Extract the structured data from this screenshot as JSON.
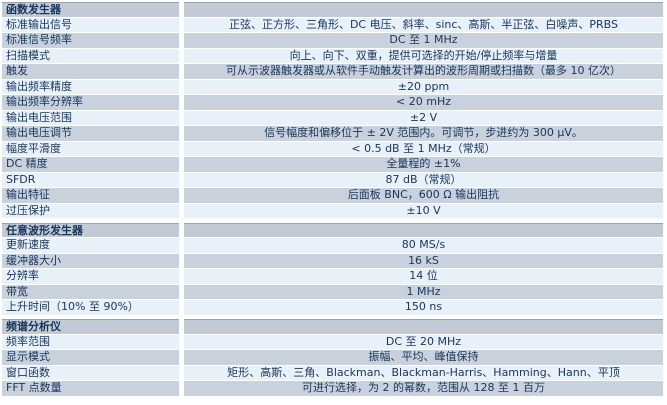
{
  "table": {
    "colors": {
      "row_light": "#e8f0f8",
      "row_dark": "#c8d1dc",
      "header_bg": "#c2cad4",
      "text": "#17365d"
    },
    "sections": [
      {
        "header": "函数发生器",
        "rows": [
          {
            "label": "标准输出信号",
            "value": "正弦、正方形、三角形、DC 电压、斜率、sinc、高斯、半正弦、白噪声、PRBS"
          },
          {
            "label": "标准信号频率",
            "value": "DC 至 1 MHz"
          },
          {
            "label": "扫描模式",
            "value": "向上、向下、双重，提供可选择的开始/停止频率与增量"
          },
          {
            "label": "触发",
            "value": "可从示波器触发器或从软件手动触发计算出的波形周期或扫描数（最多 10 亿次）"
          },
          {
            "label": "输出频率精度",
            "value": "±20 ppm"
          },
          {
            "label": "输出频率分辨率",
            "value": "< 20 mHz"
          },
          {
            "label": "输出电压范围",
            "value": "±2 V"
          },
          {
            "label": "输出电压调节",
            "value": "信号幅度和偏移位于 ± 2V 范围内。可调节，步进约为 300 µV。"
          },
          {
            "label": "幅度平滑度",
            "value": "< 0.5 dB 至 1 MHz（常规）"
          },
          {
            "label": "DC 精度",
            "value": "全量程的 ±1%"
          },
          {
            "label": "SFDR",
            "value": "87 dB（常规）"
          },
          {
            "label": "输出特征",
            "value": "后面板 BNC，600 Ω 输出阻抗"
          },
          {
            "label": "过压保护",
            "value": "±10 V"
          }
        ]
      },
      {
        "header": "任意波形发生器",
        "rows": [
          {
            "label": "更新速度",
            "value": "80 MS/s"
          },
          {
            "label": "缓冲器大小",
            "value": "16 kS"
          },
          {
            "label": "分辨率",
            "value": "14 位"
          },
          {
            "label": "带宽",
            "value": "1 MHz"
          },
          {
            "label": "上升时间（10% 至 90%）",
            "value": "150 ns"
          }
        ]
      },
      {
        "header": "频谱分析仪",
        "rows": [
          {
            "label": "频率范围",
            "value": "DC 至 20 MHz"
          },
          {
            "label": "显示模式",
            "value": "振幅、平均、峰值保持"
          },
          {
            "label": "窗口函数",
            "value": "矩形、高斯、三角、Blackman、Blackman-Harris、Hamming、Hann、平顶"
          },
          {
            "label": "FFT 点数量",
            "value": "可进行选择，为 2 的幂数，范围从 128 至 1 百万"
          }
        ]
      }
    ]
  }
}
